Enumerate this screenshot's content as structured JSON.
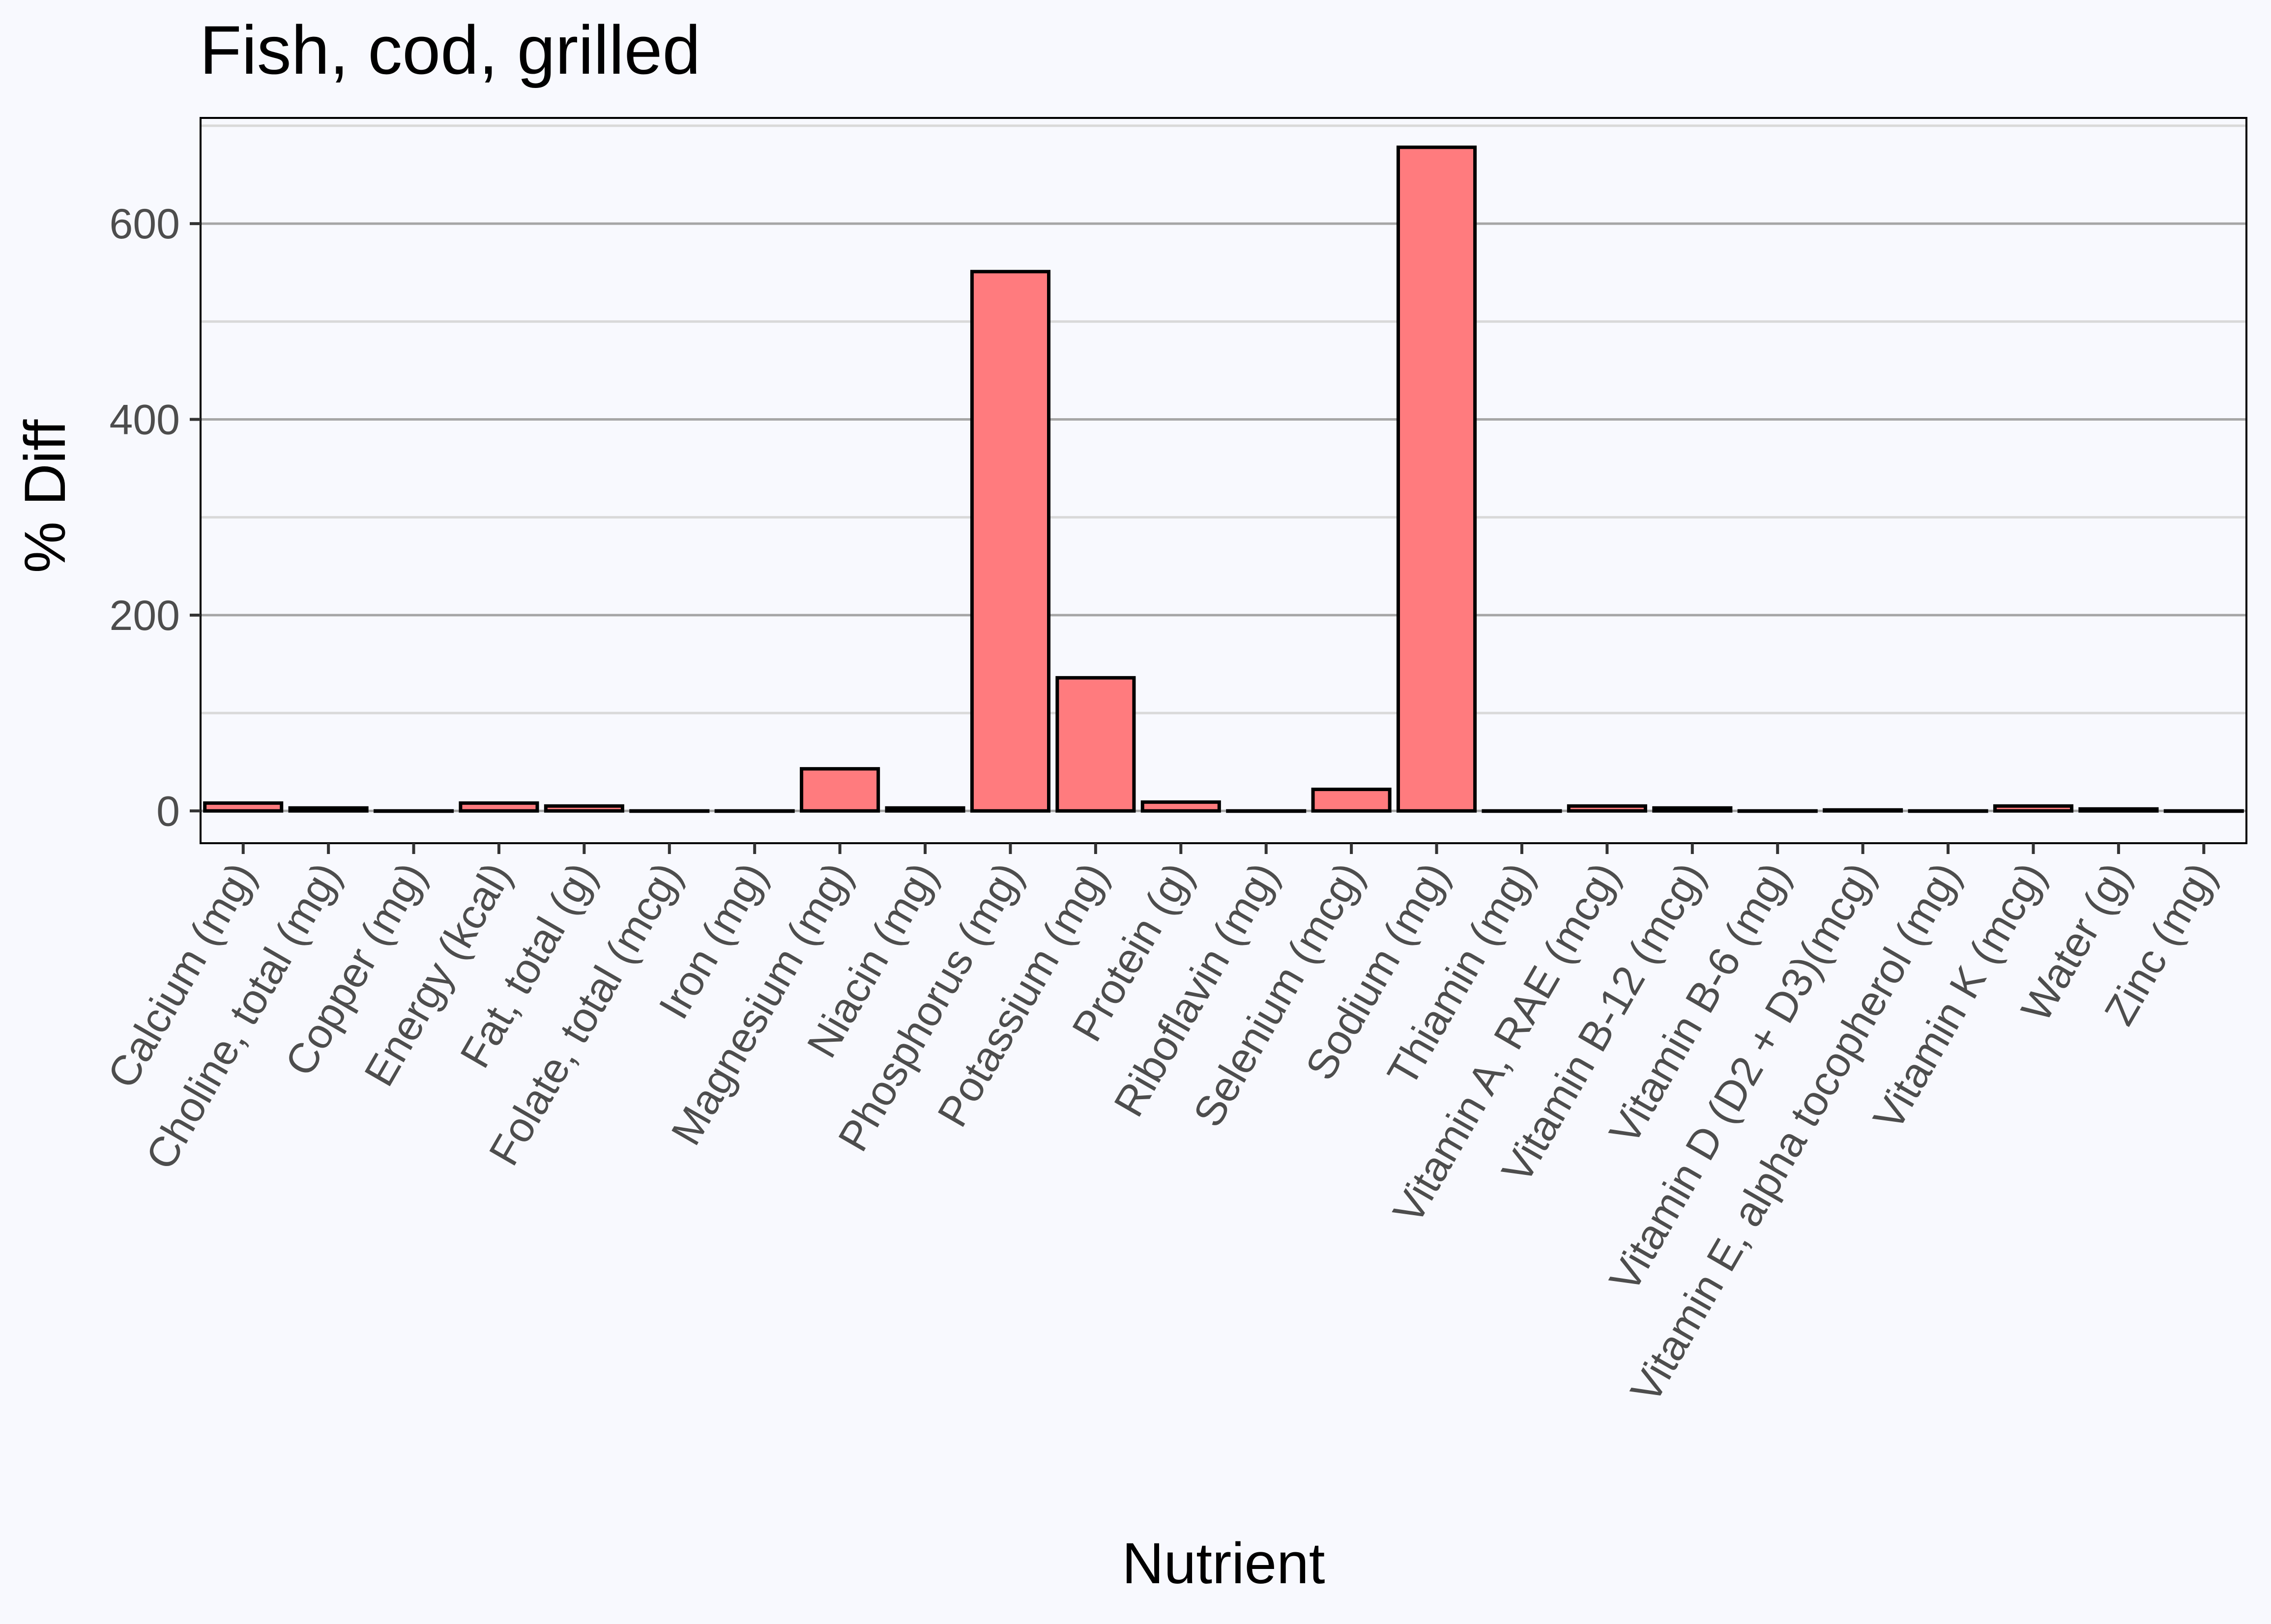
{
  "chart_data": {
    "type": "bar",
    "title": "Fish, cod, grilled",
    "xlabel": "Nutrient",
    "ylabel": "% Diff",
    "ylim": [
      -33,
      708
    ],
    "yticks": [
      0,
      200,
      400,
      600
    ],
    "grid": true,
    "legend": "none",
    "colors": {
      "fill": "#ff7b7e",
      "stroke": "#000000",
      "background": "#f8f9fe",
      "grid_major": "#a6a6a6",
      "grid_minor": "#d9d9d9"
    },
    "categories": [
      "Calcium (mg)",
      "Choline, total (mg)",
      "Copper (mg)",
      "Energy (kcal)",
      "Fat, total (g)",
      "Folate, total (mcg)",
      "Iron (mg)",
      "Magnesium (mg)",
      "Niacin (mg)",
      "Phosphorus (mg)",
      "Potassium (mg)",
      "Protein (g)",
      "Riboflavin (mg)",
      "Selenium (mcg)",
      "Sodium (mg)",
      "Thiamin (mg)",
      "Vitamin A, RAE (mcg)",
      "Vitamin B-12 (mcg)",
      "Vitamin B-6 (mg)",
      "Vitamin D (D2 + D3)(mcg)",
      "Vitamin E, alpha tocopherol (mg)",
      "Vitamin K (mcg)",
      "Water (g)",
      "Zinc (mg)"
    ],
    "values": [
      8,
      3,
      0,
      8,
      5,
      0,
      0,
      43,
      3,
      551,
      136,
      9,
      0,
      22,
      678,
      0,
      5,
      3,
      0,
      1,
      0,
      5,
      2,
      0
    ]
  }
}
